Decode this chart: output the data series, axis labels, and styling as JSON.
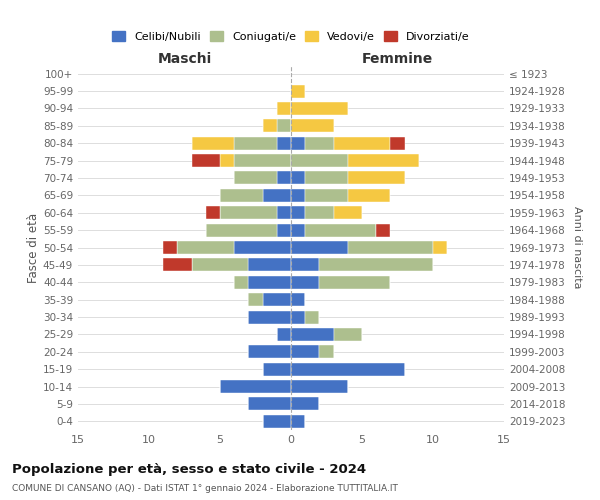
{
  "age_groups": [
    "0-4",
    "5-9",
    "10-14",
    "15-19",
    "20-24",
    "25-29",
    "30-34",
    "35-39",
    "40-44",
    "45-49",
    "50-54",
    "55-59",
    "60-64",
    "65-69",
    "70-74",
    "75-79",
    "80-84",
    "85-89",
    "90-94",
    "95-99",
    "100+"
  ],
  "birth_years": [
    "2019-2023",
    "2014-2018",
    "2009-2013",
    "2004-2008",
    "1999-2003",
    "1994-1998",
    "1989-1993",
    "1984-1988",
    "1979-1983",
    "1974-1978",
    "1969-1973",
    "1964-1968",
    "1959-1963",
    "1954-1958",
    "1949-1953",
    "1944-1948",
    "1939-1943",
    "1934-1938",
    "1929-1933",
    "1924-1928",
    "≤ 1923"
  ],
  "colors": {
    "celibi": "#4472C4",
    "coniugati": "#ADBF8E",
    "vedovi": "#F5C842",
    "divorziati": "#C0392B"
  },
  "maschi": {
    "celibi": [
      2,
      3,
      5,
      2,
      3,
      1,
      3,
      2,
      3,
      3,
      4,
      1,
      1,
      2,
      1,
      0,
      1,
      0,
      0,
      0,
      0
    ],
    "coniugati": [
      0,
      0,
      0,
      0,
      0,
      0,
      0,
      1,
      1,
      4,
      4,
      5,
      4,
      3,
      3,
      4,
      3,
      1,
      0,
      0,
      0
    ],
    "vedovi": [
      0,
      0,
      0,
      0,
      0,
      0,
      0,
      0,
      0,
      0,
      0,
      0,
      0,
      0,
      0,
      1,
      3,
      1,
      1,
      0,
      0
    ],
    "divorziati": [
      0,
      0,
      0,
      0,
      0,
      0,
      0,
      0,
      0,
      2,
      1,
      0,
      1,
      0,
      0,
      2,
      0,
      0,
      0,
      0,
      0
    ]
  },
  "femmine": {
    "celibi": [
      1,
      2,
      4,
      8,
      2,
      3,
      1,
      1,
      2,
      2,
      4,
      1,
      1,
      1,
      1,
      0,
      1,
      0,
      0,
      0,
      0
    ],
    "coniugati": [
      0,
      0,
      0,
      0,
      1,
      2,
      1,
      0,
      5,
      8,
      6,
      5,
      2,
      3,
      3,
      4,
      2,
      0,
      0,
      0,
      0
    ],
    "vedovi": [
      0,
      0,
      0,
      0,
      0,
      0,
      0,
      0,
      0,
      0,
      1,
      0,
      2,
      3,
      4,
      5,
      4,
      3,
      4,
      1,
      0
    ],
    "divorziati": [
      0,
      0,
      0,
      0,
      0,
      0,
      0,
      0,
      0,
      0,
      0,
      1,
      0,
      0,
      0,
      0,
      1,
      0,
      0,
      0,
      0
    ]
  },
  "xlim": 15,
  "title": "Popolazione per età, sesso e stato civile - 2024",
  "subtitle": "COMUNE DI CANSANO (AQ) - Dati ISTAT 1° gennaio 2024 - Elaborazione TUTTITALIA.IT",
  "xlabel_left": "Maschi",
  "xlabel_right": "Femmine",
  "ylabel": "Fasce di età",
  "ylabel_right": "Anni di nascita",
  "legend_labels": [
    "Celibi/Nubili",
    "Coniugati/e",
    "Vedovi/e",
    "Divorziati/e"
  ]
}
